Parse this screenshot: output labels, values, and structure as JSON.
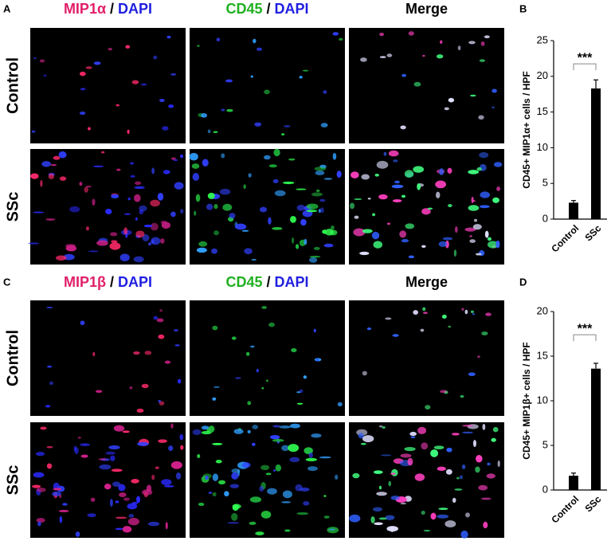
{
  "image_panels": [
    {
      "label": "A",
      "headers": [
        [
          "MIP1α",
          "/",
          "DAPI"
        ],
        [
          "CD45",
          "/",
          "DAPI"
        ],
        [
          "Merge"
        ]
      ],
      "rows": [
        "Control",
        "SSc"
      ]
    },
    {
      "label": "C",
      "headers": [
        [
          "MIP1β",
          "/",
          "DAPI"
        ],
        [
          "CD45",
          "/",
          "DAPI"
        ],
        [
          "Merge"
        ]
      ],
      "rows": [
        "Control",
        "SSc"
      ]
    }
  ],
  "chart_data": [
    {
      "type": "bar",
      "panel_label": "B",
      "ylabel": "CD45+ MIP1α+ cells / HPF",
      "categories": [
        "Control",
        "SSc"
      ],
      "values": [
        2.3,
        18.3
      ],
      "errors": [
        0.3,
        1.2
      ],
      "color": "#000000",
      "ylim": [
        0,
        25
      ],
      "yticks": [
        0,
        5,
        10,
        15,
        20,
        25
      ],
      "annotation": "***"
    },
    {
      "type": "bar",
      "panel_label": "D",
      "ylabel": "CD45+ MIP1β+ cells / HPF",
      "categories": [
        "Control",
        "SSc"
      ],
      "values": [
        1.6,
        13.6
      ],
      "errors": [
        0.3,
        0.6
      ],
      "color": "#000000",
      "ylim": [
        0,
        20
      ],
      "yticks": [
        0,
        5,
        10,
        15,
        20
      ],
      "annotation": "***"
    }
  ]
}
